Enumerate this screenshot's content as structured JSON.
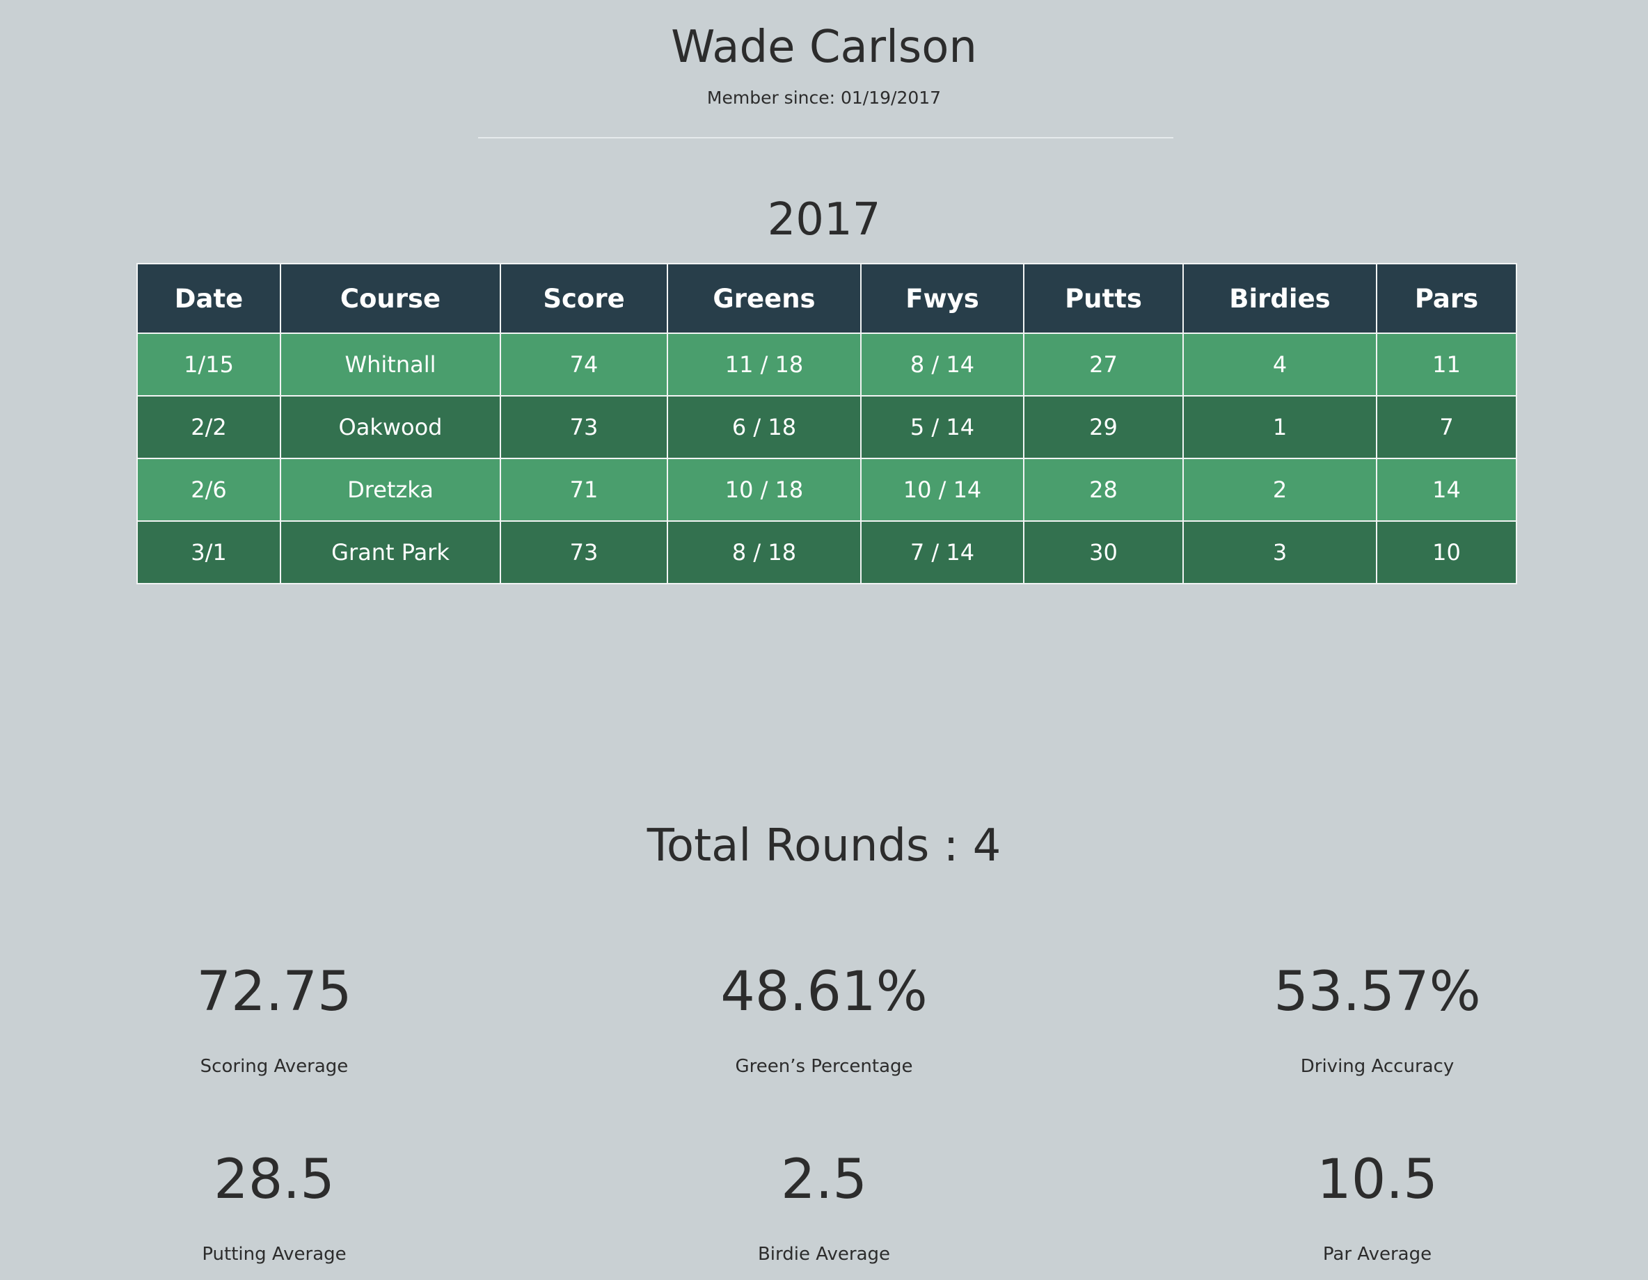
{
  "header": {
    "name": "Wade Carlson",
    "member_since": "Member since: 01/19/2017"
  },
  "season": {
    "year": "2017",
    "columns": [
      "Date",
      "Course",
      "Score",
      "Greens",
      "Fwys",
      "Putts",
      "Birdies",
      "Pars"
    ],
    "rows": [
      [
        "1/15",
        "Whitnall",
        "74",
        "11 / 18",
        "8 / 14",
        "27",
        "4",
        "11"
      ],
      [
        "2/2",
        "Oakwood",
        "73",
        "6 / 18",
        "5 / 14",
        "29",
        "1",
        "7"
      ],
      [
        "2/6",
        "Dretzka",
        "71",
        "10 / 18",
        "10 / 14",
        "28",
        "2",
        "14"
      ],
      [
        "3/1",
        "Grant Park",
        "73",
        "8 / 18",
        "7 / 14",
        "30",
        "3",
        "10"
      ]
    ]
  },
  "summary": {
    "total_rounds": "Total Rounds : 4",
    "stats": [
      {
        "value": "72.75",
        "label": "Scoring Average"
      },
      {
        "value": "48.61%",
        "label": "Green’s Percentage"
      },
      {
        "value": "53.57%",
        "label": "Driving Accuracy"
      },
      {
        "value": "28.5",
        "label": "Putting Average"
      },
      {
        "value": "2.5",
        "label": "Birdie Average"
      },
      {
        "value": "10.5",
        "label": "Par Average"
      }
    ]
  },
  "colors": {
    "background": "#c9d0d3",
    "header_row": "#283e4a",
    "row_light": "#4a9e6d",
    "row_dark": "#33714f",
    "text": "#2c2c2c"
  }
}
